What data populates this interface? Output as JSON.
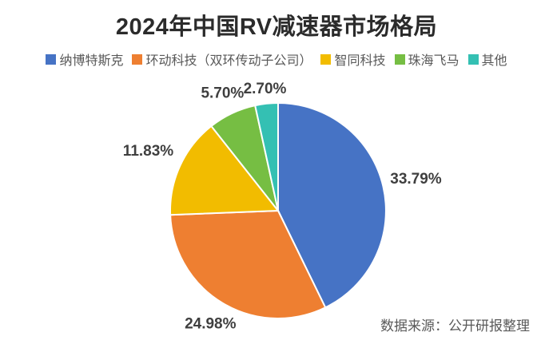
{
  "chart_data": {
    "type": "pie",
    "title": "2024年中国RV减速器市场格局",
    "categories": [
      "纳博特斯克",
      "环动科技（双环传动子公司）",
      "智同科技",
      "珠海飞马",
      "其他"
    ],
    "values": [
      33.79,
      24.98,
      11.83,
      5.7,
      2.7
    ],
    "labels": [
      "33.79%",
      "24.98%",
      "11.83%",
      "5.70%",
      "2.70%"
    ],
    "colors": [
      "#4673C5",
      "#EE7F31",
      "#F2BC00",
      "#76BE43",
      "#34C0B3"
    ],
    "values_unit": "%",
    "legend_position": "top",
    "start_angle_deg": 0,
    "direction": "clockwise",
    "label_position": "outside",
    "label_color": "#3F3F3F",
    "title_color": "#2B2B2B",
    "legend_text_color": "#595959",
    "background": "#FFFFFF"
  },
  "footer": {
    "source_note": "数据来源：公开研报整理"
  }
}
